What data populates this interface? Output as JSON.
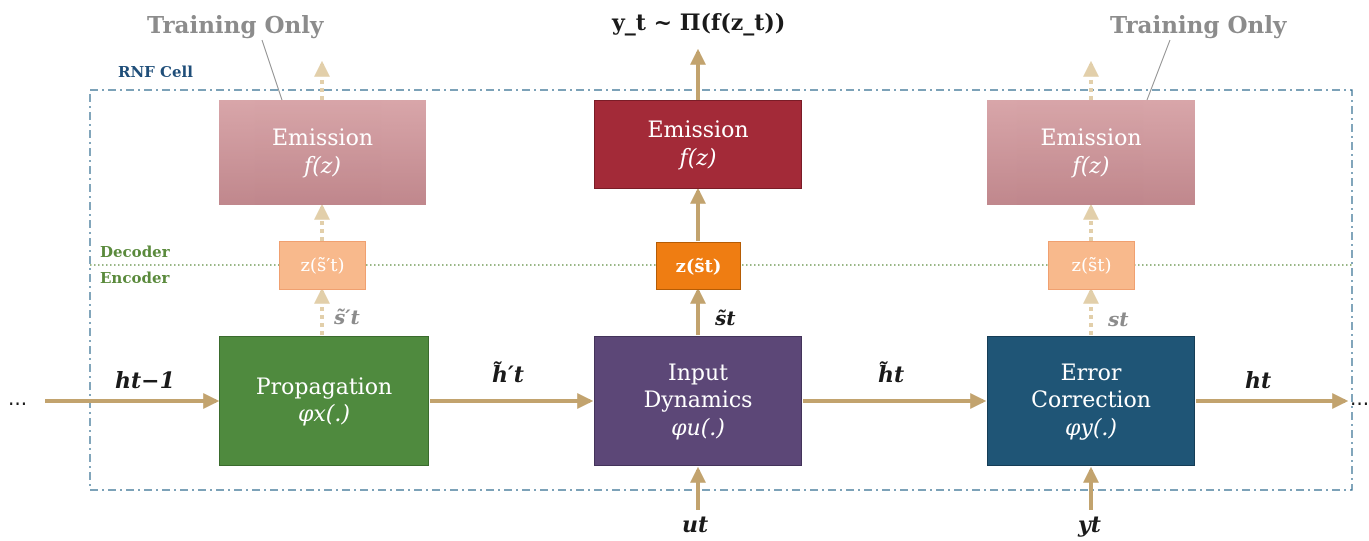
{
  "training_only_left": "Training Only",
  "training_only_right": "Training Only",
  "output_label": "y_t ~ Π(f(z_t))",
  "cell_label": "RNF Cell",
  "decoder_label": "Decoder",
  "encoder_label": "Encoder",
  "ellipsis_left": "...",
  "ellipsis_right": "...",
  "emission_left": {
    "title": "Emission",
    "formula": "f(z)"
  },
  "emission_center": {
    "title": "Emission",
    "formula": "f(z)"
  },
  "emission_right": {
    "title": "Emission",
    "formula": "f(z)"
  },
  "z_left": "z(s̃′t)",
  "z_center": "z(s̃t)",
  "z_right": "z(s̃t)",
  "s_left": "s̃′t",
  "s_center": "s̃t",
  "s_right": "st",
  "propagation": {
    "title": "Propagation",
    "formula": "φx(.)"
  },
  "input_dynamics": {
    "title1": "Input",
    "title2": "Dynamics",
    "formula": "φu(.)"
  },
  "error_correction": {
    "title1": "Error",
    "title2": "Correction",
    "formula": "φy(.)"
  },
  "h_prev": "ht−1",
  "h_tilde_prime": "h̃′t",
  "h_tilde": "h̃t",
  "h_out": "ht",
  "u_in": "ut",
  "y_in": "yt",
  "colors": {
    "propagation": "#4f8a3e",
    "input_dynamics": "#5c4777",
    "error_correction": "#1f5576",
    "emission_active": "#a32a38",
    "emission_faded": "#c98f93",
    "z_active": "#ef7d12",
    "z_faded": "#f8b98c",
    "arrow": "#c2a36e",
    "arrow_faded": "#e2cfaa",
    "cell_border": "#2e6a8e",
    "divider": "#5a8a3c"
  }
}
